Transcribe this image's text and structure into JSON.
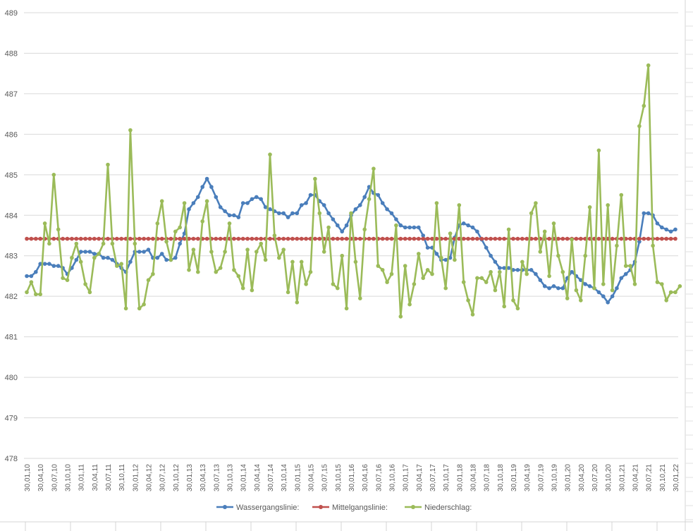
{
  "chart_data": {
    "type": "line",
    "title": "",
    "xlabel": "",
    "ylabel": "",
    "ylim": [
      478,
      489
    ],
    "yticks": [
      478,
      479,
      480,
      481,
      482,
      483,
      484,
      485,
      486,
      487,
      488,
      489
    ],
    "grid": "horizontal",
    "legend": "bottom",
    "x_tick_labels": [
      "30,01,10",
      "30,04,10",
      "30,07,10",
      "30,10,10",
      "30,01,11",
      "30,04,11",
      "30,07,11",
      "30,10,11",
      "30,01,12",
      "30,04,12",
      "30,07,12",
      "30,10,12",
      "30,01,13",
      "30,04,13",
      "30,07,13",
      "30,10,13",
      "30,01,14",
      "30,04,14",
      "30,07,14",
      "30,10,14",
      "30,01,15",
      "30,04,15",
      "30,07,15",
      "30,10,15",
      "30,01,16",
      "30,04,16",
      "30,07,16",
      "30,10,16",
      "30,01,17",
      "30,04,17",
      "30,07,17",
      "30,10,17",
      "30,01,18",
      "30,04,18",
      "30,07,18",
      "30,10,18",
      "30,01,19",
      "30,04,19",
      "30,07,19",
      "30,10,19",
      "30,01,20",
      "30,04,20",
      "30,07,20",
      "30,10,20",
      "30,01,21",
      "30,04,21",
      "30,07,21",
      "30,10,21",
      "30,01,22"
    ],
    "series": [
      {
        "name": "Wassergangslinie:",
        "color": "#4a7ebb",
        "values": [
          482.5,
          482.5,
          482.6,
          482.8,
          482.8,
          482.8,
          482.75,
          482.75,
          482.7,
          482.55,
          482.7,
          482.9,
          483.1,
          483.1,
          483.1,
          483.05,
          483.05,
          482.95,
          482.95,
          482.9,
          482.8,
          482.7,
          482.6,
          482.85,
          483.1,
          483.1,
          483.1,
          483.15,
          482.95,
          482.95,
          483.05,
          482.9,
          482.9,
          482.95,
          483.3,
          483.55,
          484.15,
          484.3,
          484.45,
          484.7,
          484.9,
          484.7,
          484.45,
          484.2,
          484.1,
          484.0,
          484.0,
          483.95,
          484.3,
          484.3,
          484.4,
          484.45,
          484.4,
          484.2,
          484.15,
          484.1,
          484.05,
          484.05,
          483.95,
          484.05,
          484.05,
          484.25,
          484.3,
          484.5,
          484.5,
          484.35,
          484.25,
          484.05,
          483.9,
          483.75,
          483.6,
          483.75,
          484.0,
          484.15,
          484.25,
          484.45,
          484.7,
          484.55,
          484.5,
          484.3,
          484.15,
          484.05,
          483.9,
          483.75,
          483.7,
          483.7,
          483.7,
          483.7,
          483.5,
          483.2,
          483.2,
          483.05,
          482.9,
          482.9,
          482.95,
          483.45,
          483.75,
          483.8,
          483.75,
          483.7,
          483.6,
          483.4,
          483.2,
          483.0,
          482.85,
          482.7,
          482.7,
          482.7,
          482.65,
          482.65,
          482.65,
          482.65,
          482.65,
          482.55,
          482.4,
          482.25,
          482.2,
          482.25,
          482.2,
          482.2,
          482.45,
          482.6,
          482.5,
          482.4,
          482.3,
          482.25,
          482.2,
          482.1,
          482.0,
          481.85,
          482.0,
          482.2,
          482.45,
          482.55,
          482.65,
          482.85,
          483.35,
          484.05,
          484.05,
          484.0,
          483.8,
          483.7,
          483.65,
          483.6,
          483.65
        ]
      },
      {
        "name": "Mittelgangslinie:",
        "color": "#c0504d",
        "values": [
          483.42,
          483.42,
          483.42,
          483.42,
          483.42,
          483.42,
          483.42,
          483.42,
          483.42,
          483.42,
          483.42,
          483.42,
          483.42,
          483.42,
          483.42,
          483.42,
          483.42,
          483.42,
          483.42,
          483.42,
          483.42,
          483.42,
          483.42,
          483.42,
          483.42,
          483.42,
          483.42,
          483.42,
          483.42,
          483.42,
          483.42,
          483.42,
          483.42,
          483.42,
          483.42,
          483.42,
          483.42,
          483.42,
          483.42,
          483.42,
          483.42,
          483.42,
          483.42,
          483.42,
          483.42,
          483.42,
          483.42,
          483.42,
          483.42,
          483.42,
          483.42,
          483.42,
          483.42,
          483.42,
          483.42,
          483.42,
          483.42,
          483.42,
          483.42,
          483.42,
          483.42,
          483.42,
          483.42,
          483.42,
          483.42,
          483.42,
          483.42,
          483.42,
          483.42,
          483.42,
          483.42,
          483.42,
          483.42,
          483.42,
          483.42,
          483.42,
          483.42,
          483.42,
          483.42,
          483.42,
          483.42,
          483.42,
          483.42,
          483.42,
          483.42,
          483.42,
          483.42,
          483.42,
          483.42,
          483.42,
          483.42,
          483.42,
          483.42,
          483.42,
          483.42,
          483.42,
          483.42,
          483.42,
          483.42,
          483.42,
          483.42,
          483.42,
          483.42,
          483.42,
          483.42,
          483.42,
          483.42,
          483.42,
          483.42,
          483.42,
          483.42,
          483.42,
          483.42,
          483.42,
          483.42,
          483.42,
          483.42,
          483.42,
          483.42,
          483.42,
          483.42,
          483.42,
          483.42,
          483.42,
          483.42,
          483.42,
          483.42,
          483.42,
          483.42,
          483.42,
          483.42,
          483.42,
          483.42,
          483.42,
          483.42,
          483.42,
          483.42,
          483.42,
          483.42,
          483.42,
          483.42,
          483.42,
          483.42,
          483.42,
          483.42
        ]
      },
      {
        "name": "Niederschlag:",
        "color": "#9bbb59",
        "values": [
          482.1,
          482.35,
          482.05,
          482.05,
          483.8,
          483.3,
          485.0,
          483.65,
          482.45,
          482.4,
          482.95,
          483.3,
          482.85,
          482.3,
          482.1,
          482.95,
          483.05,
          483.3,
          485.25,
          483.3,
          482.75,
          482.8,
          481.7,
          486.1,
          483.3,
          481.7,
          481.8,
          482.4,
          482.55,
          483.8,
          484.35,
          483.35,
          482.9,
          483.6,
          483.7,
          484.3,
          482.65,
          483.15,
          482.6,
          483.85,
          484.35,
          483.1,
          482.6,
          482.7,
          483.1,
          483.8,
          482.65,
          482.5,
          482.2,
          483.15,
          482.15,
          483.1,
          483.3,
          482.9,
          485.5,
          483.5,
          482.95,
          483.15,
          482.1,
          482.85,
          481.85,
          482.85,
          482.3,
          482.6,
          484.9,
          484.05,
          483.1,
          483.7,
          482.3,
          482.2,
          483.0,
          481.7,
          484.05,
          482.85,
          481.95,
          483.65,
          484.4,
          485.15,
          482.75,
          482.65,
          482.35,
          482.55,
          483.75,
          481.5,
          482.75,
          481.8,
          482.3,
          483.05,
          482.45,
          482.65,
          482.55,
          484.3,
          482.95,
          482.2,
          483.55,
          482.9,
          484.25,
          482.35,
          481.9,
          481.55,
          482.45,
          482.45,
          482.35,
          482.6,
          482.15,
          482.6,
          481.75,
          483.65,
          481.9,
          481.7,
          482.85,
          482.55,
          484.05,
          484.3,
          483.1,
          483.6,
          482.5,
          483.8,
          483.0,
          482.6,
          481.95,
          483.4,
          482.15,
          481.9,
          483.0,
          484.2,
          482.2,
          485.6,
          482.3,
          484.25,
          482.15,
          483.25,
          484.5,
          482.75,
          482.75,
          482.3,
          486.2,
          486.7,
          487.7,
          483.25,
          482.35,
          482.3,
          481.9,
          482.1,
          482.1,
          482.25
        ]
      }
    ]
  }
}
